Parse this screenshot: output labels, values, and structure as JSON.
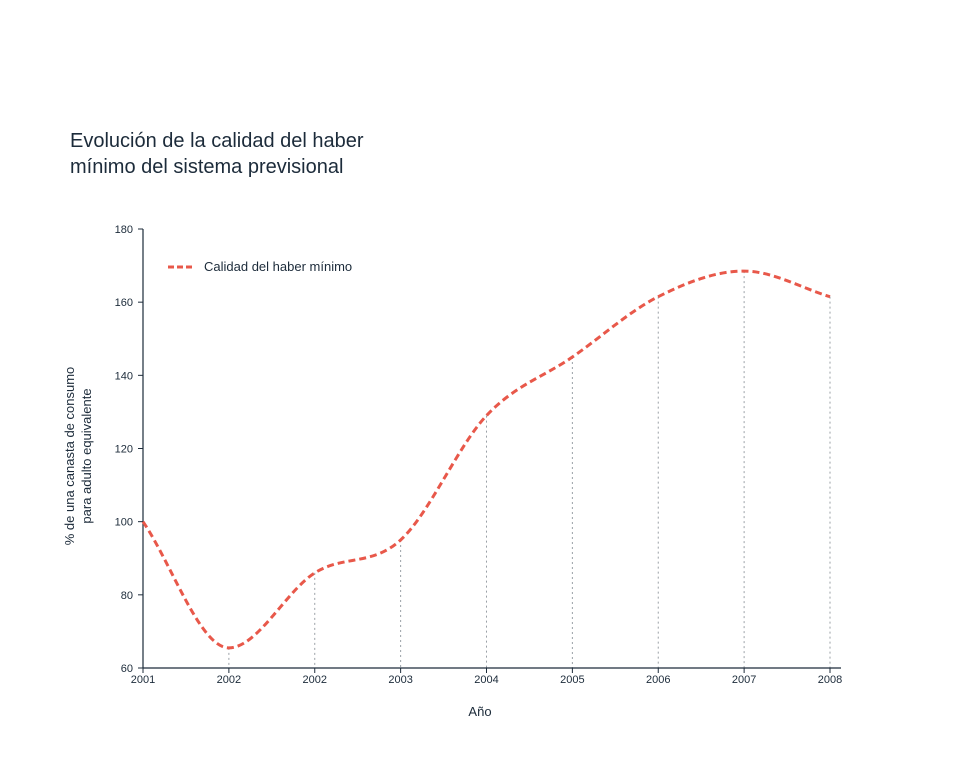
{
  "chart_data": {
    "type": "line",
    "title_lines": [
      "Evolución de la calidad del haber",
      "mínimo del sistema previsional"
    ],
    "xlabel": "Año",
    "ylabel_lines": [
      "% de una canasta de consumo",
      "para adulto equivalente"
    ],
    "categories": [
      "2001",
      "2002",
      "2002",
      "2003",
      "2004",
      "2005",
      "2006",
      "2007",
      "2008"
    ],
    "ylim": [
      60,
      180
    ],
    "yticks": [
      60,
      80,
      100,
      120,
      140,
      160,
      180
    ],
    "legend_position": "top-left",
    "series": [
      {
        "name": "Calidad del haber mínimo",
        "color": "#e8584a",
        "dash": "dashed",
        "values": [
          100,
          65.5,
          86,
          95,
          129,
          145,
          161.5,
          168.5,
          161.5
        ]
      }
    ],
    "grid": "vertical dotted drop lines at each point"
  }
}
